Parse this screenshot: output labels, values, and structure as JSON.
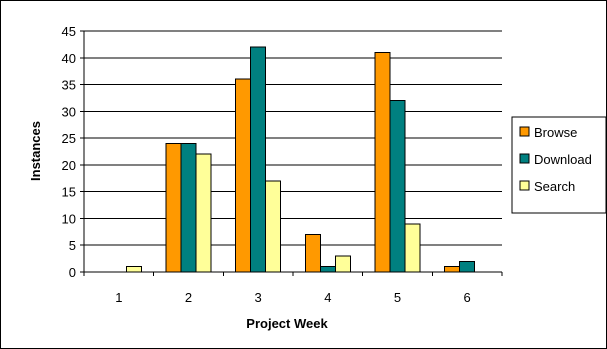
{
  "chart_data": {
    "type": "bar",
    "title": "",
    "xlabel": "Project Week",
    "ylabel": "Instances",
    "categories": [
      "1",
      "2",
      "3",
      "4",
      "5",
      "6"
    ],
    "ylim": [
      0,
      45
    ],
    "y_ticks": [
      0,
      5,
      10,
      15,
      20,
      25,
      30,
      35,
      40,
      45
    ],
    "grid": true,
    "legend_position": "right",
    "series": [
      {
        "name": "Browse",
        "color": "#FF9900",
        "values": [
          0,
          24,
          36,
          7,
          41,
          1
        ]
      },
      {
        "name": "Download",
        "color": "#008080",
        "values": [
          0,
          24,
          42,
          1,
          32,
          2
        ]
      },
      {
        "name": "Search",
        "color": "#FFFF99",
        "values": [
          1,
          22,
          17,
          3,
          9,
          0
        ]
      }
    ]
  }
}
